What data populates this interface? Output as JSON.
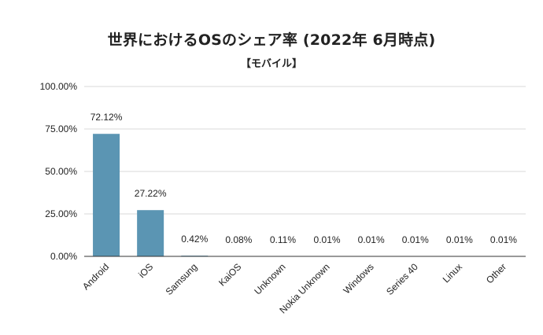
{
  "chart_data": {
    "type": "bar",
    "title": "世界におけるOSのシェア率 (2022年 6月時点)",
    "subtitle": "【モバイル】",
    "xlabel": "",
    "ylabel": "",
    "categories": [
      "Android",
      "iOS",
      "Samsung",
      "KaiOS",
      "Unknown",
      "Nokia Unknown",
      "Windows",
      "Series 40",
      "Linux",
      "Other"
    ],
    "values": [
      72.12,
      27.22,
      0.42,
      0.08,
      0.11,
      0.01,
      0.01,
      0.01,
      0.01,
      0.01
    ],
    "data_labels": [
      "72.12%",
      "27.22%",
      "0.42%",
      "0.08%",
      "0.11%",
      "0.01%",
      "0.01%",
      "0.01%",
      "0.01%",
      "0.01%"
    ],
    "ylim": [
      0,
      100
    ],
    "yticks": [
      0,
      25,
      50,
      75,
      100
    ],
    "ytick_labels": [
      "0.00%",
      "25.00%",
      "50.00%",
      "75.00%",
      "100.00%"
    ],
    "grid": true,
    "legend": "none",
    "bar_color": "#5b95b3",
    "grid_color": "#d9d9d9",
    "axis_color": "#333333"
  }
}
